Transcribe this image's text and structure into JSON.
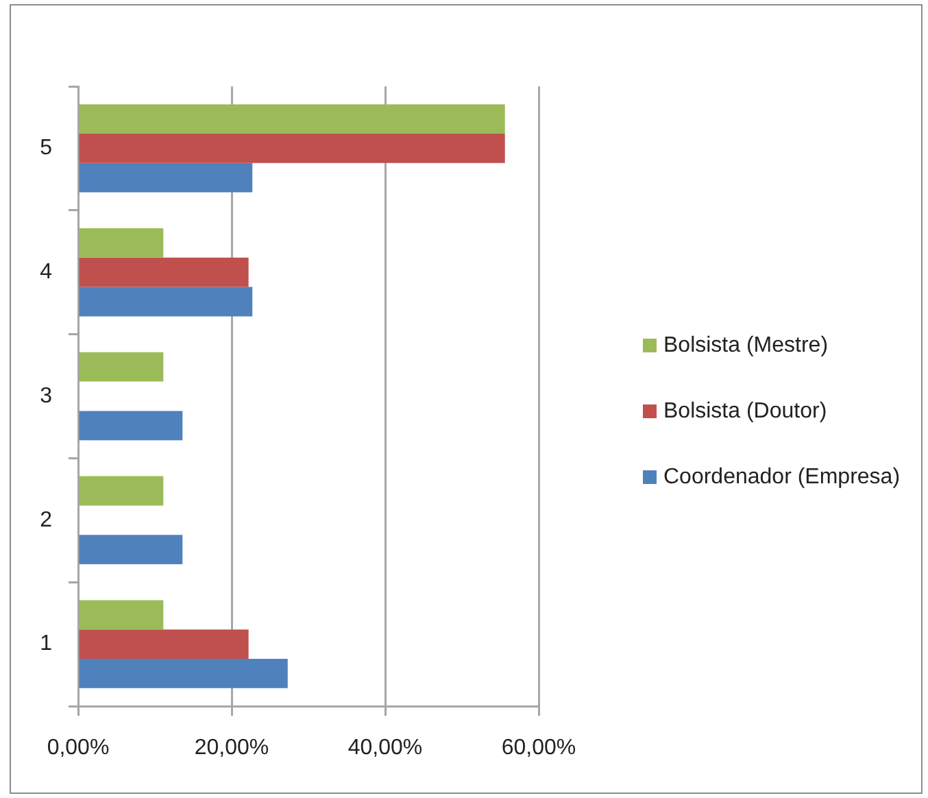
{
  "chart_data": {
    "type": "bar",
    "orientation": "horizontal",
    "categories": [
      "5",
      "4",
      "3",
      "2",
      "1"
    ],
    "series": [
      {
        "name": "Bolsista (Mestre)",
        "color": "#9bbb59",
        "values": [
          55.6,
          11.1,
          11.1,
          11.1,
          11.1
        ]
      },
      {
        "name": "Bolsista (Doutor)",
        "color": "#c0504d",
        "values": [
          55.6,
          22.2,
          0,
          0,
          22.2
        ]
      },
      {
        "name": "Coordenador (Empresa)",
        "color": "#4f81bd",
        "values": [
          22.7,
          22.7,
          13.6,
          13.6,
          27.3
        ]
      }
    ],
    "xlim": [
      0,
      60
    ],
    "xticks": [
      {
        "value": 0,
        "label": "0,00%"
      },
      {
        "value": 20,
        "label": "20,00%"
      },
      {
        "value": 40,
        "label": "40,00%"
      },
      {
        "value": 60,
        "label": "60,00%"
      }
    ],
    "grid": "x",
    "legend": "right"
  }
}
